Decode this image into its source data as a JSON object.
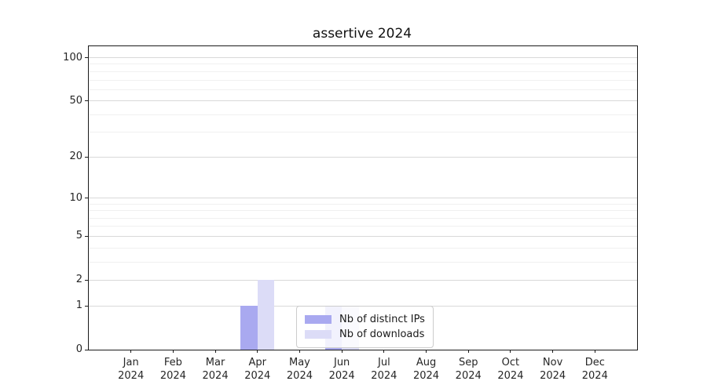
{
  "figure": {
    "background": "#ffffff"
  },
  "chart_data": {
    "type": "bar",
    "title": "assertive 2024",
    "xlabel": "",
    "ylabel": "",
    "categories": [
      "Jan 2024",
      "Feb 2024",
      "Mar 2024",
      "Apr 2024",
      "May 2024",
      "Jun 2024",
      "Jul 2024",
      "Aug 2024",
      "Sep 2024",
      "Oct 2024",
      "Nov 2024",
      "Dec 2024"
    ],
    "series": [
      {
        "name": "Nb of distinct IPs",
        "color": "#a9a9f0",
        "values": [
          0,
          0,
          0,
          1,
          0,
          1,
          0,
          0,
          0,
          0,
          0,
          0
        ]
      },
      {
        "name": "Nb of downloads",
        "color": "#dcdcf7",
        "values": [
          0,
          0,
          0,
          2,
          0,
          1,
          0,
          0,
          0,
          0,
          0,
          0
        ]
      }
    ],
    "yscale": "log1p",
    "ylim": [
      0,
      120
    ],
    "yticks": [
      0,
      1,
      2,
      5,
      10,
      20,
      50,
      100
    ],
    "minor_yticks": [
      3,
      4,
      6,
      7,
      8,
      9,
      30,
      40,
      60,
      70,
      80,
      90
    ],
    "grid": "horizontal",
    "legend_position": "lower center"
  }
}
